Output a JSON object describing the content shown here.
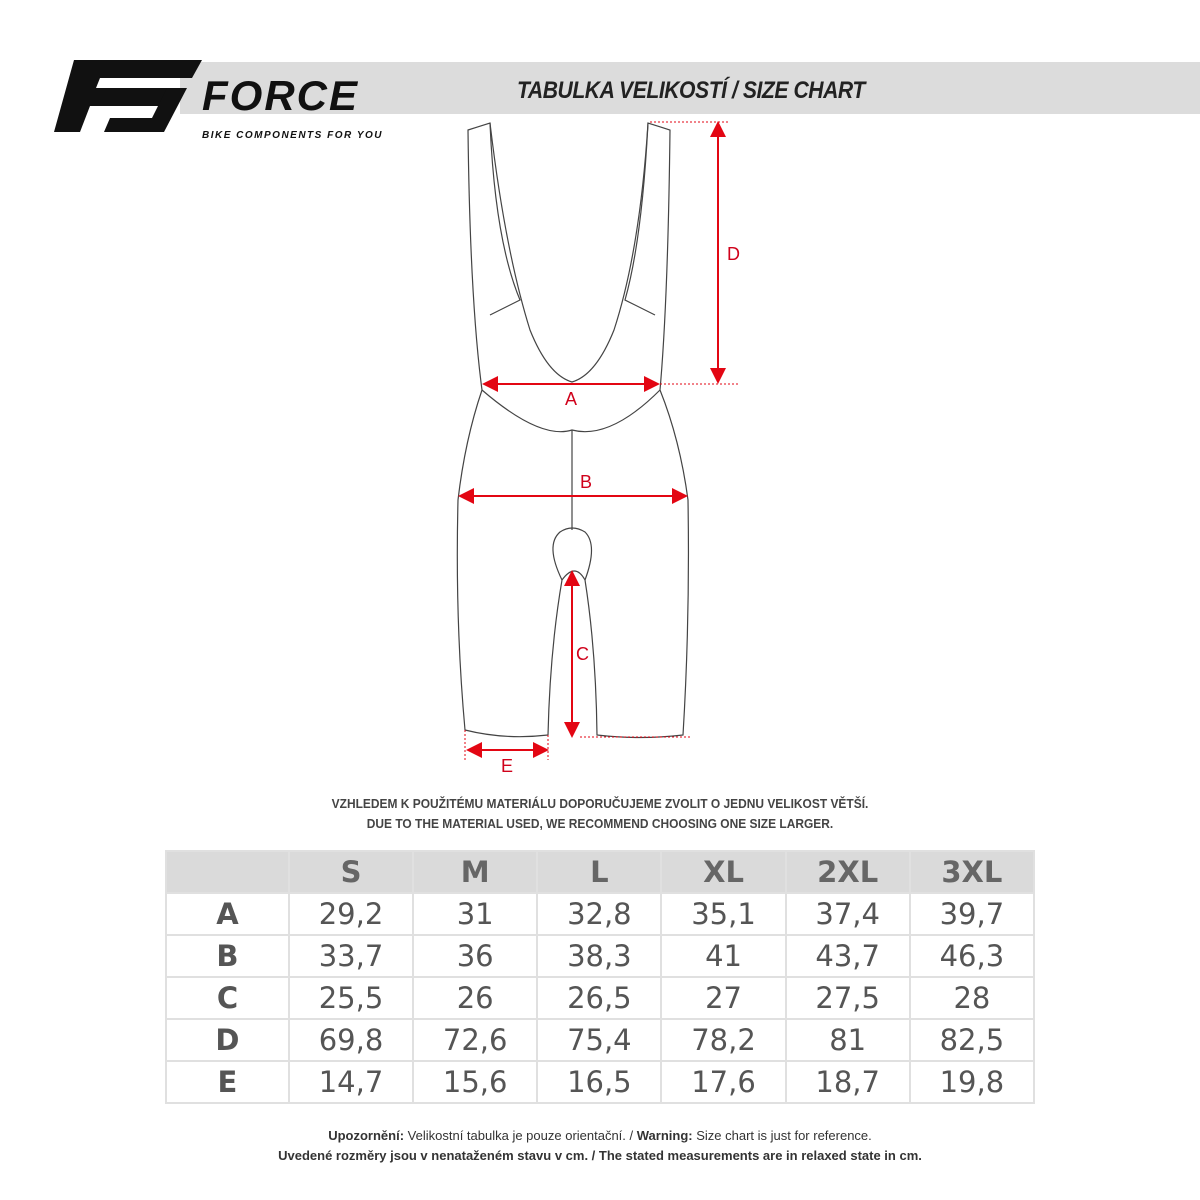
{
  "logo": {
    "brand": "FORCE",
    "tagline": "BIKE COMPONENTS FOR YOU"
  },
  "header": {
    "title": "TABULKA VELIKOSTÍ / SIZE CHART"
  },
  "diagram": {
    "labels": {
      "A": "A",
      "B": "B",
      "C": "C",
      "D": "D",
      "E": "E"
    },
    "accent_color": "#e30613"
  },
  "recommendation": {
    "cz": "VZHLEDEM K POUŽITÉMU MATERIÁLU DOPORUČUJEME ZVOLIT O JEDNU VELIKOST VĚTŠÍ.",
    "en": "DUE TO THE MATERIAL USED, WE RECOMMEND CHOOSING ONE SIZE LARGER."
  },
  "table": {
    "columns": [
      "",
      "S",
      "M",
      "L",
      "XL",
      "2XL",
      "3XL"
    ],
    "rows": [
      {
        "label": "A",
        "values": [
          "29,2",
          "31",
          "32,8",
          "35,1",
          "37,4",
          "39,7"
        ]
      },
      {
        "label": "B",
        "values": [
          "33,7",
          "36",
          "38,3",
          "41",
          "43,7",
          "46,3"
        ]
      },
      {
        "label": "C",
        "values": [
          "25,5",
          "26",
          "26,5",
          "27",
          "27,5",
          "28"
        ]
      },
      {
        "label": "D",
        "values": [
          "69,8",
          "72,6",
          "75,4",
          "78,2",
          "81",
          "82,5"
        ]
      },
      {
        "label": "E",
        "values": [
          "14,7",
          "15,6",
          "16,5",
          "17,6",
          "18,7",
          "19,8"
        ]
      }
    ]
  },
  "footer": {
    "line1_bold1": "Upozornění:",
    "line1_text1": " Velikostní tabulka je pouze orientační. / ",
    "line1_bold2": "Warning:",
    "line1_text2": " Size chart is just for reference.",
    "line2": "Uvedené rozměry jsou v nenataženém stavu v cm. / The stated measurements are in relaxed state in cm."
  }
}
